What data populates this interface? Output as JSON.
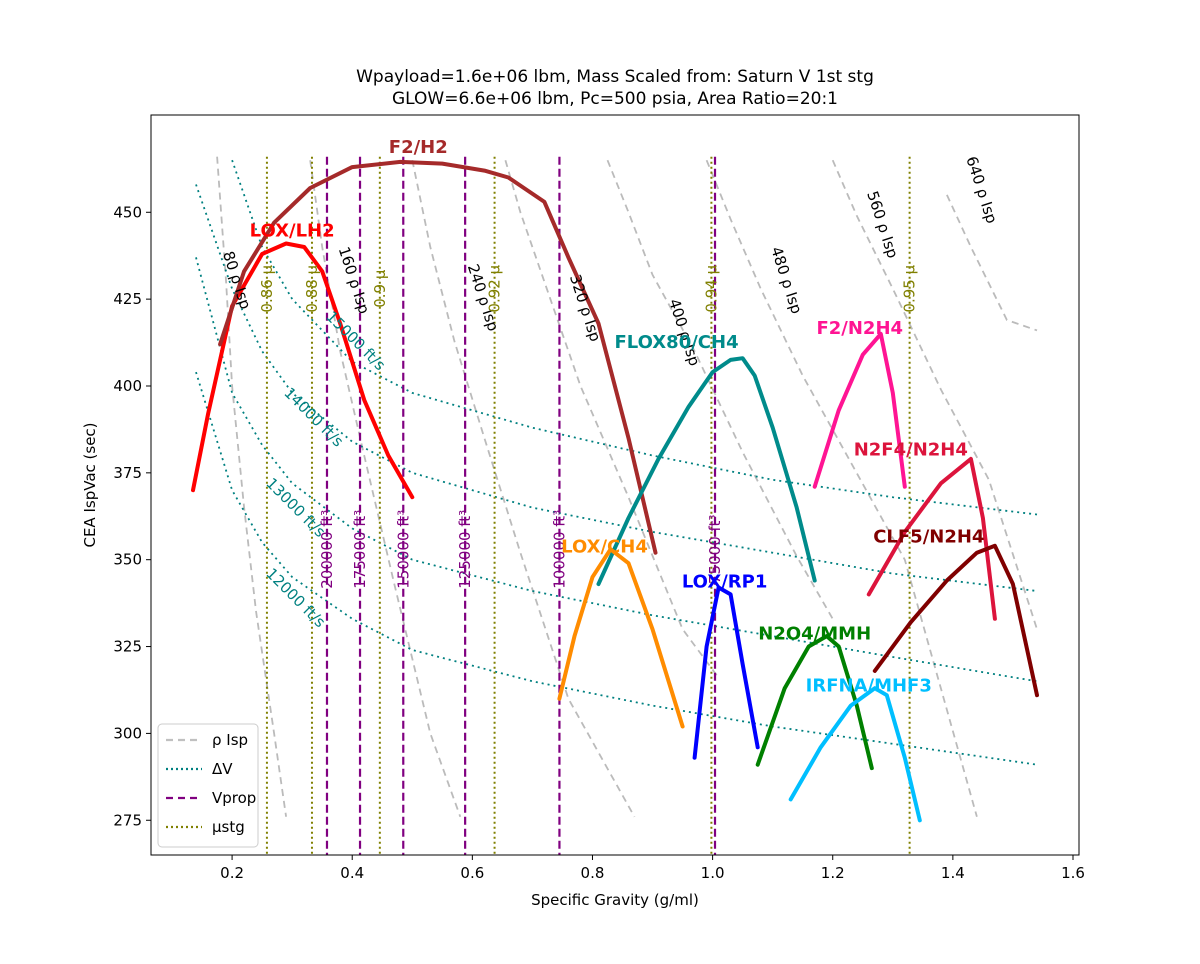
{
  "chart_data": {
    "type": "line",
    "title": [
      "Wpayload=1.6e+06 lbm, Mass Scaled from: Saturn V 1st stg",
      "GLOW=6.6e+06 lbm, Pc=500 psia, Area Ratio=20:1"
    ],
    "xlabel": "Specific Gravity (g/ml)",
    "ylabel": "CEA IspVac (sec)",
    "xlim": [
      0.065,
      1.61
    ],
    "ylim": [
      265,
      478
    ],
    "xticks": [
      0.2,
      0.4,
      0.6,
      0.8,
      1.0,
      1.2,
      1.4,
      1.6
    ],
    "xtick_labels": [
      "0.2",
      "0.4",
      "0.6",
      "0.8",
      "1.0",
      "1.2",
      "1.4",
      "1.6"
    ],
    "yticks": [
      275,
      300,
      325,
      350,
      375,
      400,
      425,
      450
    ],
    "ytick_labels": [
      "275",
      "300",
      "325",
      "350",
      "375",
      "400",
      "425",
      "450"
    ],
    "grid": false,
    "legend": {
      "position": "lower-left",
      "entries": [
        {
          "label": "ρ Isp",
          "style": "dashed",
          "color": "#c0c0c0"
        },
        {
          "label": "ΔV",
          "style": "dotted",
          "color": "#008080"
        },
        {
          "label": "Vprop",
          "style": "dashed",
          "color": "#800080"
        },
        {
          "label": "μstg",
          "style": "dotted",
          "color": "#808000"
        }
      ]
    },
    "propellants": [
      {
        "name": "LOX/LH2",
        "color": "#ff0000",
        "label_at": [
          0.3,
          443
        ],
        "x": [
          0.135,
          0.16,
          0.2,
          0.25,
          0.29,
          0.32,
          0.35,
          0.38,
          0.42,
          0.46,
          0.5
        ],
        "y": [
          370,
          392,
          423,
          438,
          441,
          440,
          433,
          418,
          396,
          380,
          368
        ]
      },
      {
        "name": "F2/H2",
        "color": "#a52a2a",
        "label_at": [
          0.51,
          467
        ],
        "x": [
          0.18,
          0.22,
          0.27,
          0.33,
          0.4,
          0.48,
          0.55,
          0.62,
          0.66,
          0.72,
          0.76,
          0.81,
          0.86,
          0.905
        ],
        "y": [
          412,
          433,
          447,
          457,
          463,
          464.5,
          464,
          462,
          460,
          453,
          437,
          418,
          385,
          352
        ]
      },
      {
        "name": "FLOX80/CH4",
        "color": "#008b8b",
        "label_at": [
          0.94,
          411
        ],
        "x": [
          0.81,
          0.86,
          0.91,
          0.96,
          1.0,
          1.03,
          1.05,
          1.07,
          1.1,
          1.14,
          1.17
        ],
        "y": [
          343,
          362,
          379,
          394,
          404,
          407.5,
          408,
          403,
          388,
          365,
          344
        ]
      },
      {
        "name": "F2/N2H4",
        "color": "#ff1493",
        "label_at": [
          1.245,
          415
        ],
        "x": [
          1.17,
          1.21,
          1.25,
          1.28,
          1.3,
          1.32
        ],
        "y": [
          371,
          393,
          409,
          415,
          398,
          371
        ]
      },
      {
        "name": "N2F4/N2H4",
        "color": "#dc143c",
        "label_at": [
          1.33,
          380
        ],
        "x": [
          1.26,
          1.32,
          1.38,
          1.43,
          1.45,
          1.47
        ],
        "y": [
          340,
          358,
          372,
          379,
          362,
          333
        ]
      },
      {
        "name": "CLF5/N2H4",
        "color": "#800000",
        "label_at": [
          1.36,
          355
        ],
        "x": [
          1.27,
          1.33,
          1.39,
          1.44,
          1.47,
          1.5,
          1.54
        ],
        "y": [
          318,
          332,
          344,
          352,
          354,
          343,
          311
        ]
      },
      {
        "name": "LOX/CH4",
        "color": "#ff8c00",
        "label_at": [
          0.82,
          352
        ],
        "x": [
          0.745,
          0.77,
          0.8,
          0.83,
          0.86,
          0.9,
          0.95
        ],
        "y": [
          310,
          328,
          345,
          353,
          349,
          330,
          302
        ]
      },
      {
        "name": "LOX/RP1",
        "color": "#0000ff",
        "label_at": [
          1.02,
          342
        ],
        "x": [
          0.97,
          0.99,
          1.01,
          1.03,
          1.05,
          1.075
        ],
        "y": [
          293,
          325,
          342,
          340,
          320,
          296
        ]
      },
      {
        "name": "N2O4/MMH",
        "color": "#008000",
        "label_at": [
          1.17,
          327
        ],
        "x": [
          1.075,
          1.12,
          1.16,
          1.19,
          1.21,
          1.24,
          1.265
        ],
        "y": [
          291,
          313,
          325,
          328,
          325,
          308,
          290
        ]
      },
      {
        "name": "IRFNA/MHF3",
        "color": "#00bfff",
        "label_at": [
          1.26,
          312
        ],
        "x": [
          1.13,
          1.18,
          1.23,
          1.27,
          1.29,
          1.32,
          1.345
        ],
        "y": [
          281,
          296,
          308,
          313,
          311,
          293,
          275
        ]
      }
    ],
    "rho_isp_lines": [
      {
        "label": "80 ρ Isp",
        "x": [
          0.175,
          0.19,
          0.2,
          0.22,
          0.24,
          0.27,
          0.29
        ],
        "y": [
          466,
          430,
          400,
          365,
          335,
          300,
          276
        ],
        "label_at": [
          0.2,
          430
        ]
      },
      {
        "label": "160 ρ Isp",
        "x": [
          0.33,
          0.35,
          0.38,
          0.42,
          0.47,
          0.53,
          0.58
        ],
        "y": [
          465,
          440,
          410,
          380,
          343,
          300,
          276
        ],
        "label_at": [
          0.395,
          430
        ]
      },
      {
        "label": "240 ρ Isp",
        "x": [
          0.5,
          0.53,
          0.57,
          0.62,
          0.68,
          0.76,
          0.87
        ],
        "y": [
          465,
          440,
          413,
          385,
          352,
          310,
          276
        ],
        "label_at": [
          0.61,
          425
        ]
      },
      {
        "label": "320 ρ Isp",
        "x": [
          0.655,
          0.68,
          0.72,
          0.78,
          0.86,
          0.95,
          1.01
        ],
        "y": [
          465,
          450,
          430,
          400,
          368,
          330,
          316
        ],
        "label_at": [
          0.78,
          422
        ]
      },
      {
        "label": "400 ρ Isp",
        "x": [
          0.825,
          0.86,
          0.9,
          0.97,
          1.05,
          1.14,
          1.2
        ],
        "y": [
          465,
          450,
          432,
          410,
          381,
          351,
          333
        ],
        "label_at": [
          0.945,
          415
        ]
      },
      {
        "label": "480 ρ Isp",
        "x": [
          0.99,
          1.03,
          1.08,
          1.15,
          1.23,
          1.32,
          1.44
        ],
        "y": [
          465,
          448,
          428,
          403,
          378,
          350,
          276
        ],
        "label_at": [
          1.115,
          430
        ]
      },
      {
        "label": "560 ρ Isp",
        "x": [
          1.2,
          1.24,
          1.3,
          1.38,
          1.46,
          1.54
        ],
        "y": [
          465,
          449,
          428,
          399,
          373,
          330
        ],
        "label_at": [
          1.275,
          446
        ]
      },
      {
        "label": "640 ρ Isp",
        "x": [
          1.39,
          1.43,
          1.49,
          1.54
        ],
        "y": [
          455,
          440,
          419,
          416
        ],
        "label_at": [
          1.44,
          456
        ]
      }
    ],
    "delta_v_lines": [
      {
        "label": "15000 ft/s",
        "x": [
          0.2,
          0.25,
          0.3,
          0.4,
          0.5,
          0.7,
          0.9,
          1.1,
          1.3,
          1.54
        ],
        "y": [
          465,
          440,
          425,
          407,
          398,
          388,
          380,
          373,
          368,
          363
        ],
        "label_at": [
          0.4,
          412
        ]
      },
      {
        "label": "14000 ft/s",
        "x": [
          0.14,
          0.2,
          0.25,
          0.3,
          0.4,
          0.5,
          0.7,
          0.9,
          1.1,
          1.3,
          1.54
        ],
        "y": [
          458,
          428,
          410,
          398,
          384,
          375,
          365,
          358,
          352,
          346,
          341
        ],
        "label_at": [
          0.33,
          390
        ]
      },
      {
        "label": "13000 ft/s",
        "x": [
          0.14,
          0.2,
          0.25,
          0.3,
          0.4,
          0.5,
          0.7,
          0.9,
          1.1,
          1.3,
          1.54
        ],
        "y": [
          437,
          398,
          383,
          372,
          359,
          350,
          341,
          334,
          328,
          322,
          315
        ],
        "label_at": [
          0.3,
          364
        ]
      },
      {
        "label": "12000 ft/s",
        "x": [
          0.14,
          0.2,
          0.25,
          0.3,
          0.4,
          0.5,
          0.7,
          0.9,
          1.1,
          1.3,
          1.54
        ],
        "y": [
          404,
          370,
          355,
          345,
          333,
          324,
          315,
          308,
          302,
          297,
          291
        ],
        "label_at": [
          0.3,
          338
        ]
      }
    ],
    "v_prop_lines": [
      {
        "label": "200000 ft³",
        "x": 0.358
      },
      {
        "label": "175000 ft³",
        "x": 0.413
      },
      {
        "label": "150000 ft³",
        "x": 0.485
      },
      {
        "label": "125000 ft³",
        "x": 0.588
      },
      {
        "label": "100000 ft³",
        "x": 0.745
      },
      {
        "label": "75000 ft³",
        "x": 1.004
      }
    ],
    "mu_stg_lines": [
      {
        "label": "0.86 μ",
        "x": 0.258
      },
      {
        "label": "0.88 μ",
        "x": 0.333
      },
      {
        "label": "0.9 μ",
        "x": 0.446
      },
      {
        "label": "0.92 μ",
        "x": 0.637
      },
      {
        "label": "0.94 μ",
        "x": 0.998
      },
      {
        "label": "0.95 μ",
        "x": 1.328
      }
    ],
    "colors": {
      "rho_isp": "#bbbbbb",
      "delta_v": "#008080",
      "v_prop": "#800080",
      "mu_stg": "#808000"
    }
  }
}
